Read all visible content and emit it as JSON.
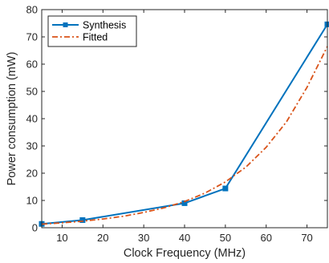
{
  "chart_data": {
    "type": "line",
    "title": "",
    "xlabel": "Clock Frequency (MHz)",
    "ylabel": "Power consumption (mW)",
    "xlim": [
      5,
      75
    ],
    "ylim": [
      0,
      80
    ],
    "xticks": [
      10,
      20,
      30,
      40,
      50,
      60,
      70
    ],
    "yticks": [
      0,
      10,
      20,
      30,
      40,
      50,
      60,
      70,
      80
    ],
    "grid": false,
    "legend_position": "top-left",
    "series": [
      {
        "name": "Synthesis",
        "color": "#0072BD",
        "line_style": "solid",
        "marker": "square",
        "x": [
          5,
          15,
          40,
          50,
          75
        ],
        "y": [
          1.4,
          2.8,
          9.0,
          14.4,
          74.6
        ]
      },
      {
        "name": "Fitted",
        "color": "#D95319",
        "line_style": "dash-dot",
        "marker": "none",
        "x": [
          5,
          10,
          15,
          20,
          25,
          30,
          35,
          40,
          45,
          50,
          55,
          60,
          65,
          70,
          75
        ],
        "y": [
          1.3,
          1.8,
          2.4,
          3.2,
          4.2,
          5.6,
          7.3,
          9.6,
          12.7,
          16.8,
          22.2,
          29.5,
          38.9,
          51.5,
          66.5
        ]
      }
    ]
  }
}
